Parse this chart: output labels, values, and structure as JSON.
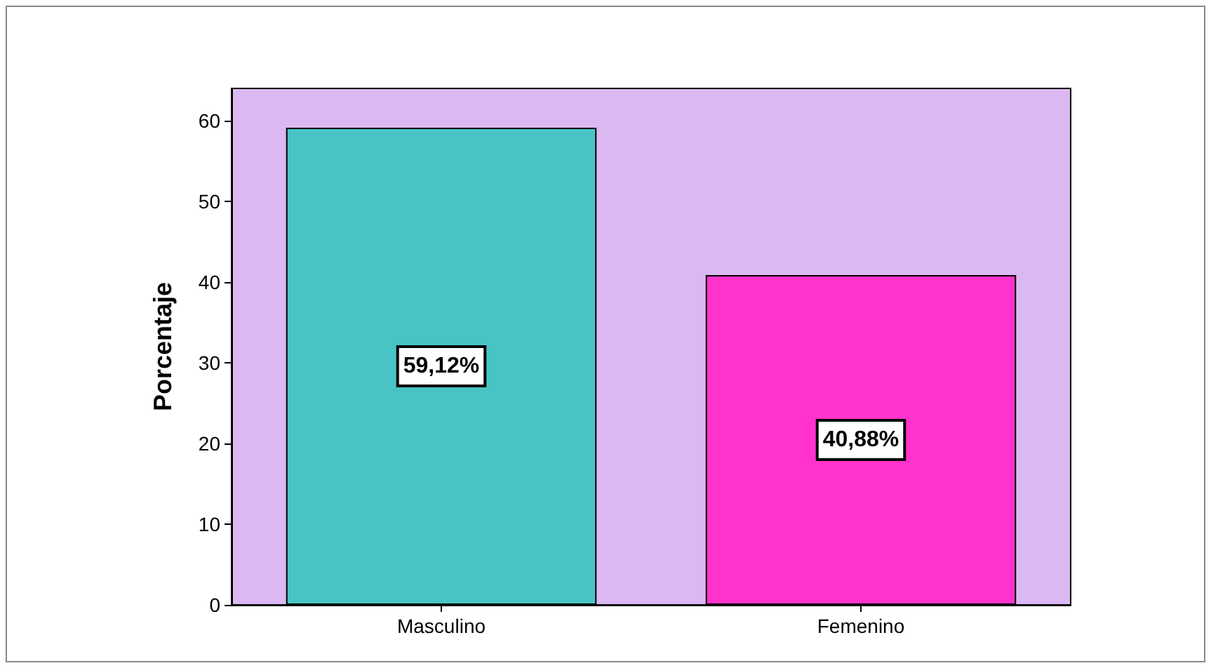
{
  "chart_data": {
    "type": "bar",
    "ylabel": "Porcentaje",
    "categories": [
      "Masculino",
      "Femenino"
    ],
    "values": [
      59.12,
      40.88
    ],
    "colors": [
      "#48c4c4",
      "#ff33cc"
    ],
    "value_labels": [
      "59,12%",
      "40,88%"
    ],
    "ylim": [
      0,
      64
    ],
    "yticks": [
      0,
      10,
      20,
      30,
      40,
      50,
      60
    ],
    "grid": false
  }
}
